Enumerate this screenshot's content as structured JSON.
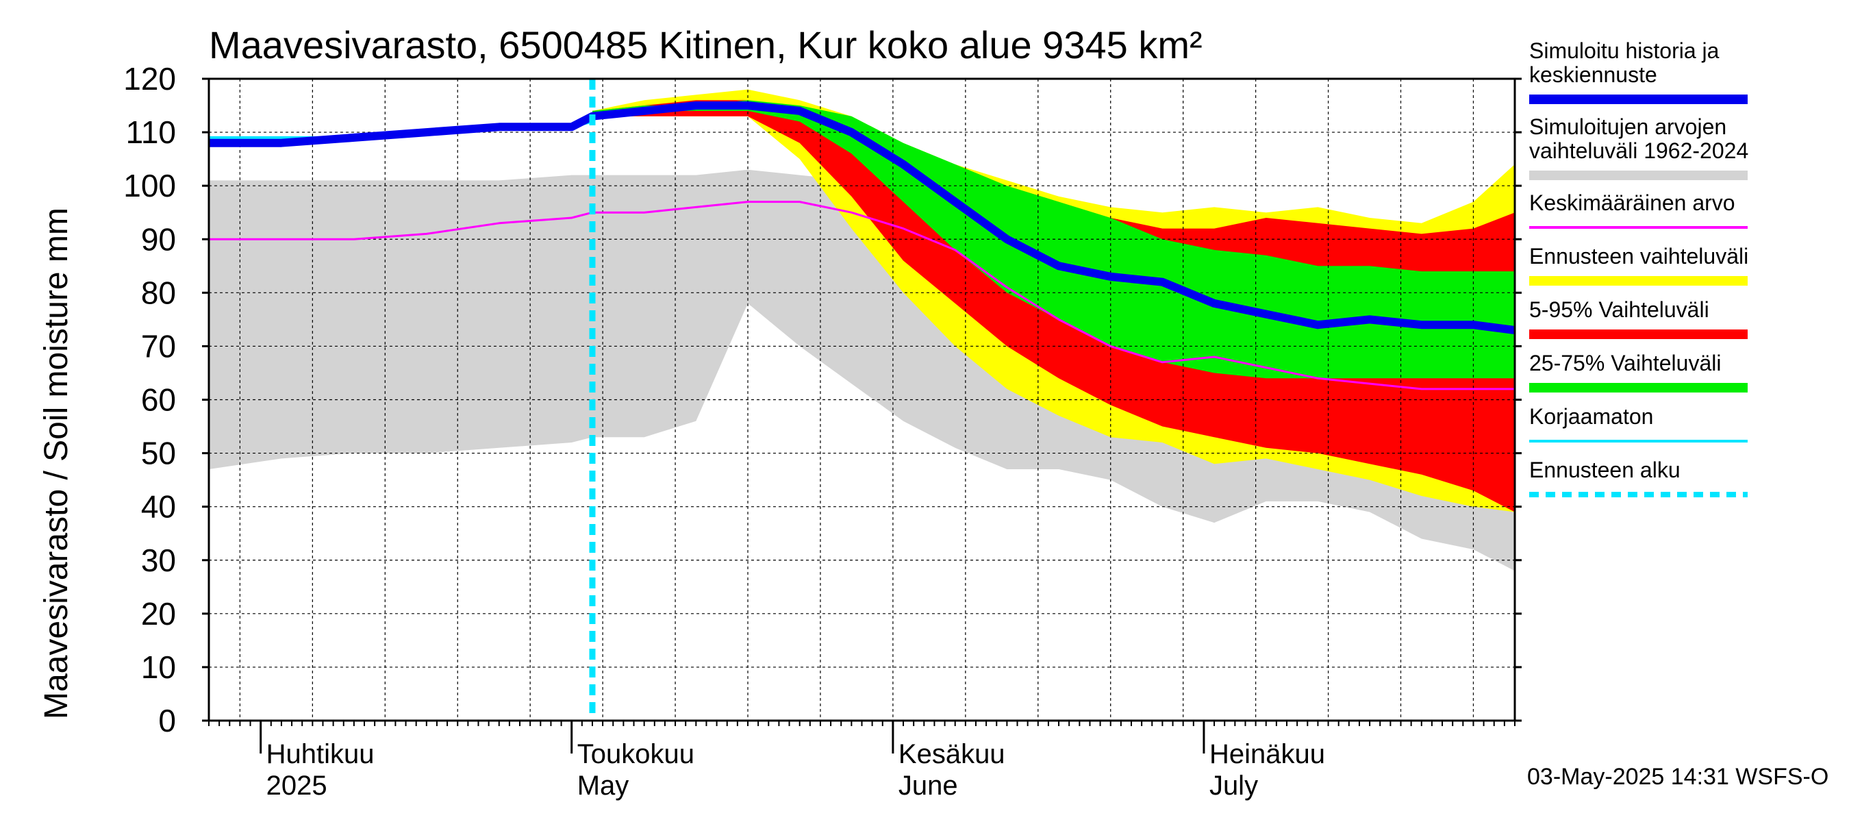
{
  "chart_data": {
    "type": "area",
    "title": "Maavesivarasto, 6500485 Kitinen, Kur koko alue 9345 km²",
    "ylabel": "Maavesivarasto / Soil moisture   mm",
    "ylim": [
      0,
      120
    ],
    "yticks": [
      0,
      10,
      20,
      30,
      40,
      50,
      60,
      70,
      80,
      90,
      100,
      110,
      120
    ],
    "xlim": [
      "2025-03-27",
      "2025-07-31"
    ],
    "forecast_start": "2025-05-03",
    "grid": true,
    "legend_position": "right",
    "x_month_labels": [
      {
        "date": "2025-04-01",
        "fi": "Huhtikuu",
        "en": "2025"
      },
      {
        "date": "2025-05-01",
        "fi": "Toukokuu",
        "en": "May"
      },
      {
        "date": "2025-06-01",
        "fi": "Kesäkuu",
        "en": "June"
      },
      {
        "date": "2025-07-01",
        "fi": "Heinäkuu",
        "en": "July"
      }
    ],
    "dates": [
      "2025-03-27",
      "2025-04-03",
      "2025-04-10",
      "2025-04-17",
      "2025-04-24",
      "2025-05-01",
      "2025-05-03",
      "2025-05-08",
      "2025-05-13",
      "2025-05-18",
      "2025-05-23",
      "2025-05-28",
      "2025-06-02",
      "2025-06-07",
      "2025-06-12",
      "2025-06-17",
      "2025-06-22",
      "2025-06-27",
      "2025-07-02",
      "2025-07-07",
      "2025-07-12",
      "2025-07-17",
      "2025-07-22",
      "2025-07-27",
      "2025-07-31"
    ],
    "series": [
      {
        "name": "Simuloitujen arvojen vaihteluväli 1962-2024",
        "color": "#d3d3d3",
        "kind": "band",
        "low": [
          47,
          49,
          50,
          50,
          51,
          52,
          53,
          53,
          56,
          78,
          70,
          63,
          56,
          51,
          47,
          47,
          45,
          40,
          37,
          41,
          41,
          39,
          34,
          32,
          28
        ],
        "high": [
          101,
          101,
          101,
          101,
          101,
          102,
          102,
          102,
          102,
          103,
          102,
          101,
          100,
          99,
          98,
          96,
          95,
          94,
          94,
          94,
          93,
          92,
          90,
          89,
          88
        ]
      },
      {
        "name": "Ennusteen vaihteluväli",
        "color": "#ffff00",
        "kind": "band",
        "low": [
          null,
          null,
          null,
          null,
          null,
          null,
          113,
          113,
          113,
          113,
          105,
          92,
          80,
          70,
          62,
          57,
          53,
          52,
          48,
          49,
          47,
          45,
          42,
          40,
          39
        ],
        "high": [
          null,
          null,
          null,
          null,
          null,
          null,
          114,
          116,
          117,
          118,
          116,
          113,
          108,
          104,
          101,
          98,
          96,
          95,
          96,
          95,
          96,
          94,
          93,
          97,
          104
        ]
      },
      {
        "name": "5-95% Vaihteluväli",
        "color": "#ff0000",
        "kind": "band",
        "low": [
          null,
          null,
          null,
          null,
          null,
          null,
          113,
          113,
          113,
          113,
          108,
          98,
          86,
          78,
          70,
          64,
          59,
          55,
          53,
          51,
          50,
          48,
          46,
          43,
          39
        ],
        "high": [
          null,
          null,
          null,
          null,
          null,
          null,
          114,
          115,
          116,
          116,
          114,
          110,
          106,
          101,
          98,
          96,
          94,
          92,
          92,
          94,
          93,
          92,
          91,
          92,
          95
        ]
      },
      {
        "name": "25-75% Vaihteluväli",
        "color": "#00ee00",
        "kind": "band",
        "low": [
          null,
          null,
          null,
          null,
          null,
          null,
          113,
          114,
          114,
          114,
          112,
          106,
          97,
          88,
          80,
          75,
          70,
          67,
          65,
          64,
          64,
          64,
          64,
          64,
          64
        ],
        "high": [
          null,
          null,
          null,
          null,
          null,
          null,
          114,
          115,
          115,
          116,
          115,
          113,
          108,
          104,
          100,
          97,
          94,
          90,
          88,
          87,
          85,
          85,
          84,
          84,
          84
        ]
      },
      {
        "name": "Keskimääräinen arvo",
        "color": "#ff00ff",
        "kind": "line",
        "values": [
          90,
          90,
          90,
          91,
          93,
          94,
          95,
          95,
          96,
          97,
          97,
          95,
          92,
          88,
          81,
          75,
          70,
          67,
          68,
          66,
          64,
          63,
          62,
          62,
          62
        ]
      },
      {
        "name": "Korjaamaton",
        "color": "#00e5ff",
        "kind": "line",
        "values": [
          109,
          109,
          109,
          110,
          111,
          111,
          112,
          null,
          null,
          null,
          null,
          null,
          null,
          null,
          null,
          null,
          null,
          null,
          null,
          null,
          null,
          null,
          null,
          null,
          null
        ]
      },
      {
        "name": "Simuloitu historia ja keskiennuste",
        "color": "#0000ee",
        "kind": "line",
        "values": [
          108,
          108,
          109,
          110,
          111,
          111,
          113,
          114,
          115,
          115,
          114,
          110,
          104,
          97,
          90,
          85,
          83,
          82,
          78,
          76,
          74,
          75,
          74,
          74,
          73
        ]
      },
      {
        "name": "Ennusteen alku",
        "color": "#00e5ff",
        "kind": "vline"
      }
    ]
  },
  "legend": [
    {
      "label": "Simuloitu historia ja keskiennuste",
      "lines": [
        "Simuloitu historia ja",
        "keskiennuste"
      ],
      "color": "#0000ee",
      "style": "thick"
    },
    {
      "label": "Simuloitujen arvojen vaihteluväli 1962-2024",
      "lines": [
        "Simuloitujen arvojen",
        "vaihteluväli 1962-2024"
      ],
      "color": "#d3d3d3",
      "style": "thick"
    },
    {
      "label": "Keskimääräinen arvo",
      "lines": [
        "Keskimääräinen arvo"
      ],
      "color": "#ff00ff",
      "style": "thin"
    },
    {
      "label": "Ennusteen vaihteluväli",
      "lines": [
        "Ennusteen vaihteluväli"
      ],
      "color": "#ffff00",
      "style": "thick"
    },
    {
      "label": "5-95% Vaihteluväli",
      "lines": [
        "5-95% Vaihteluväli"
      ],
      "color": "#ff0000",
      "style": "thick"
    },
    {
      "label": "25-75% Vaihteluväli",
      "lines": [
        "25-75% Vaihteluväli"
      ],
      "color": "#00ee00",
      "style": "thick"
    },
    {
      "label": "Korjaamaton",
      "lines": [
        "Korjaamaton"
      ],
      "color": "#00e5ff",
      "style": "thin"
    },
    {
      "label": "Ennusteen alku",
      "lines": [
        "Ennusteen alku"
      ],
      "color": "#00e5ff",
      "style": "dashed"
    }
  ],
  "footer": "03-May-2025 14:31 WSFS-O"
}
